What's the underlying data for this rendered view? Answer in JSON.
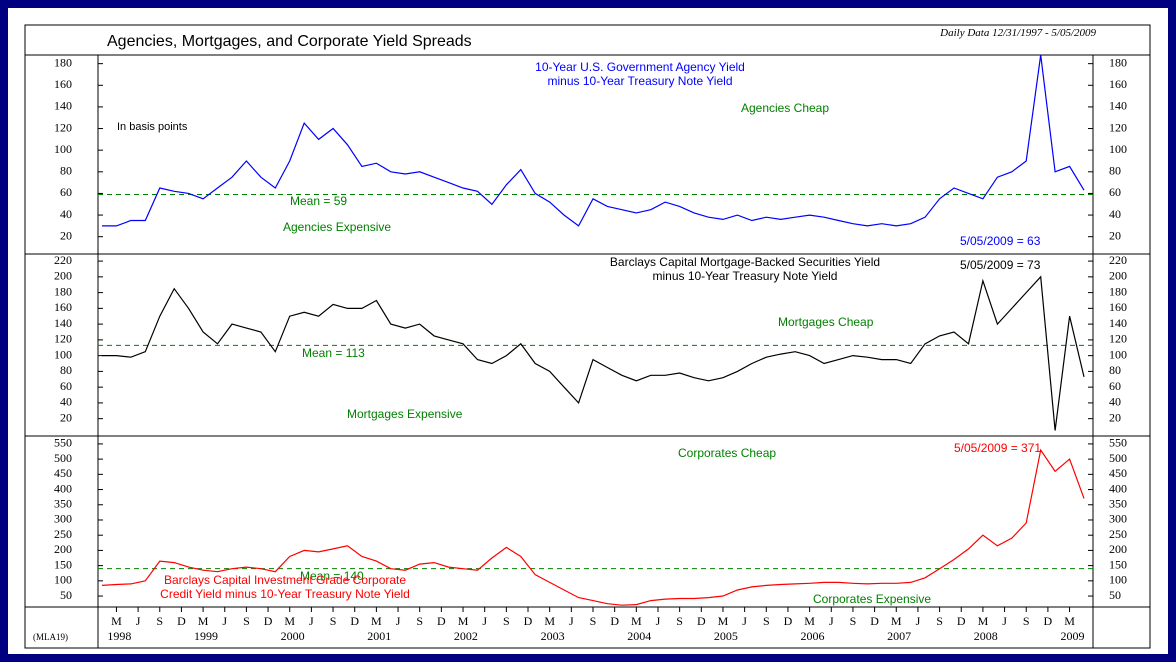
{
  "title": "Agencies, Mortgages, and Corporate Yield Spreads",
  "subtitle": "Daily Data 12/31/1997 - 5/05/2009",
  "source_code": "(MLA19)",
  "chart_data": [
    {
      "type": "line",
      "x": [
        "1998-01",
        "1998-03",
        "1998-05",
        "1998-07",
        "1998-09",
        "1998-11",
        "1999-01",
        "1999-03",
        "1999-05",
        "1999-07",
        "1999-09",
        "1999-11",
        "2000-01",
        "2000-03",
        "2000-05",
        "2000-07",
        "2000-09",
        "2000-11",
        "2001-01",
        "2001-03",
        "2001-05",
        "2001-07",
        "2001-09",
        "2001-11",
        "2002-01",
        "2002-03",
        "2002-05",
        "2002-07",
        "2002-09",
        "2002-11",
        "2003-01",
        "2003-03",
        "2003-05",
        "2003-07",
        "2003-09",
        "2003-11",
        "2004-01",
        "2004-03",
        "2004-05",
        "2004-07",
        "2004-09",
        "2004-11",
        "2005-01",
        "2005-03",
        "2005-05",
        "2005-07",
        "2005-09",
        "2005-11",
        "2006-01",
        "2006-03",
        "2006-05",
        "2006-07",
        "2006-09",
        "2006-11",
        "2007-01",
        "2007-03",
        "2007-05",
        "2007-07",
        "2007-09",
        "2007-11",
        "2008-01",
        "2008-03",
        "2008-05",
        "2008-07",
        "2008-09",
        "2008-11",
        "2009-01",
        "2009-03",
        "2009-05"
      ],
      "series": [
        {
          "name": "10-Year U.S. Government Agency Yield\nminus 10-Year Treasury Note Yield",
          "color": "#0000ff",
          "values": [
            30,
            30,
            35,
            35,
            65,
            62,
            60,
            55,
            65,
            75,
            90,
            75,
            65,
            90,
            125,
            110,
            120,
            105,
            85,
            88,
            80,
            78,
            80,
            75,
            70,
            65,
            62,
            50,
            68,
            82,
            60,
            52,
            40,
            30,
            55,
            48,
            45,
            42,
            45,
            52,
            48,
            42,
            38,
            36,
            40,
            35,
            38,
            36,
            38,
            40,
            38,
            35,
            32,
            30,
            32,
            30,
            32,
            38,
            55,
            65,
            60,
            55,
            75,
            80,
            90,
            188,
            80,
            85,
            63
          ]
        }
      ],
      "xlim": [
        "1998-01",
        "2009-05"
      ],
      "ylim": [
        4,
        188
      ],
      "yticks": [
        20,
        40,
        60,
        80,
        100,
        120,
        140,
        160,
        180
      ],
      "mean_line": {
        "value": 59,
        "label": "Mean = 59",
        "color": "#008000"
      },
      "annotations": [
        "Agencies Cheap",
        "Agencies Expensive",
        "In basis points"
      ],
      "end_label": "5/05/2009 = 63"
    },
    {
      "type": "line",
      "x": [
        "1998-01",
        "1998-03",
        "1998-05",
        "1998-07",
        "1998-09",
        "1998-11",
        "1999-01",
        "1999-03",
        "1999-05",
        "1999-07",
        "1999-09",
        "1999-11",
        "2000-01",
        "2000-03",
        "2000-05",
        "2000-07",
        "2000-09",
        "2000-11",
        "2001-01",
        "2001-03",
        "2001-05",
        "2001-07",
        "2001-09",
        "2001-11",
        "2002-01",
        "2002-03",
        "2002-05",
        "2002-07",
        "2002-09",
        "2002-11",
        "2003-01",
        "2003-03",
        "2003-05",
        "2003-07",
        "2003-09",
        "2003-11",
        "2004-01",
        "2004-03",
        "2004-05",
        "2004-07",
        "2004-09",
        "2004-11",
        "2005-01",
        "2005-03",
        "2005-05",
        "2005-07",
        "2005-09",
        "2005-11",
        "2006-01",
        "2006-03",
        "2006-05",
        "2006-07",
        "2006-09",
        "2006-11",
        "2007-01",
        "2007-03",
        "2007-05",
        "2007-07",
        "2007-09",
        "2007-11",
        "2008-01",
        "2008-03",
        "2008-05",
        "2008-07",
        "2008-09",
        "2008-11",
        "2009-01",
        "2009-03",
        "2009-05"
      ],
      "series": [
        {
          "name": "Barclays Capital Mortgage-Backed Securities Yield\nminus 10-Year Treasury Note Yield",
          "color": "#000000",
          "values": [
            100,
            100,
            98,
            105,
            150,
            185,
            160,
            130,
            115,
            140,
            135,
            130,
            105,
            150,
            155,
            150,
            165,
            160,
            160,
            170,
            140,
            135,
            140,
            125,
            120,
            115,
            95,
            90,
            100,
            115,
            90,
            80,
            60,
            40,
            95,
            85,
            75,
            68,
            75,
            75,
            78,
            72,
            68,
            72,
            80,
            90,
            98,
            102,
            105,
            100,
            90,
            95,
            100,
            98,
            95,
            95,
            90,
            115,
            125,
            130,
            115,
            195,
            140,
            160,
            180,
            200,
            5,
            150,
            73
          ]
        }
      ],
      "xlim": [
        "1998-01",
        "2009-05"
      ],
      "ylim": [
        -2,
        229
      ],
      "yticks": [
        20,
        40,
        60,
        80,
        100,
        120,
        140,
        160,
        180,
        200,
        220
      ],
      "mean_line": {
        "value": 113,
        "label": "Mean = 113",
        "color": "#008000"
      },
      "annotations": [
        "Mortgages Cheap",
        "Mortgages Expensive"
      ],
      "end_label": "5/05/2009 = 73"
    },
    {
      "type": "line",
      "x": [
        "1998-01",
        "1998-03",
        "1998-05",
        "1998-07",
        "1998-09",
        "1998-11",
        "1999-01",
        "1999-03",
        "1999-05",
        "1999-07",
        "1999-09",
        "1999-11",
        "2000-01",
        "2000-03",
        "2000-05",
        "2000-07",
        "2000-09",
        "2000-11",
        "2001-01",
        "2001-03",
        "2001-05",
        "2001-07",
        "2001-09",
        "2001-11",
        "2002-01",
        "2002-03",
        "2002-05",
        "2002-07",
        "2002-09",
        "2002-11",
        "2003-01",
        "2003-03",
        "2003-05",
        "2003-07",
        "2003-09",
        "2003-11",
        "2004-01",
        "2004-03",
        "2004-05",
        "2004-07",
        "2004-09",
        "2004-11",
        "2005-01",
        "2005-03",
        "2005-05",
        "2005-07",
        "2005-09",
        "2005-11",
        "2006-01",
        "2006-03",
        "2006-05",
        "2006-07",
        "2006-09",
        "2006-11",
        "2007-01",
        "2007-03",
        "2007-05",
        "2007-07",
        "2007-09",
        "2007-11",
        "2008-01",
        "2008-03",
        "2008-05",
        "2008-07",
        "2008-09",
        "2008-11",
        "2009-01",
        "2009-03",
        "2009-05"
      ],
      "series": [
        {
          "name": "Barclays Capital Investment Grade Corporate\nCredit Yield minus 10-Year Treasury Note Yield",
          "color": "#ff0000",
          "values": [
            85,
            88,
            90,
            100,
            165,
            160,
            145,
            135,
            130,
            140,
            145,
            140,
            130,
            180,
            200,
            195,
            205,
            215,
            180,
            165,
            140,
            135,
            155,
            160,
            145,
            140,
            135,
            175,
            210,
            180,
            120,
            95,
            70,
            45,
            35,
            25,
            20,
            22,
            35,
            40,
            42,
            42,
            45,
            50,
            70,
            80,
            85,
            88,
            90,
            92,
            95,
            95,
            92,
            90,
            92,
            92,
            95,
            110,
            140,
            170,
            205,
            250,
            215,
            240,
            290,
            530,
            460,
            500,
            371
          ]
        }
      ],
      "xlim": [
        "1998-01",
        "2009-05"
      ],
      "ylim": [
        14,
        576
      ],
      "yticks": [
        50,
        100,
        150,
        200,
        250,
        300,
        350,
        400,
        450,
        500,
        550
      ],
      "mean_line": {
        "value": 140,
        "label": "Mean = 140",
        "color": "#008000"
      },
      "annotations": [
        "Corporates Cheap",
        "Corporates Expensive"
      ],
      "end_label": "5/05/2009 = 371",
      "xticks": [
        {
          "value": "1998-03",
          "label": "M"
        },
        {
          "value": "1998-06",
          "label": "J"
        },
        {
          "value": "1998-09",
          "label": "S"
        },
        {
          "value": "1998-12",
          "label": "D"
        },
        {
          "value": "1999-03",
          "label": "M"
        },
        {
          "value": "1999-06",
          "label": "J"
        },
        {
          "value": "1999-09",
          "label": "S"
        },
        {
          "value": "1999-12",
          "label": "D"
        },
        {
          "value": "2000-03",
          "label": "M"
        },
        {
          "value": "2000-06",
          "label": "J"
        },
        {
          "value": "2000-09",
          "label": "S"
        },
        {
          "value": "2000-12",
          "label": "D"
        },
        {
          "value": "2001-03",
          "label": "M"
        },
        {
          "value": "2001-06",
          "label": "J"
        },
        {
          "value": "2001-09",
          "label": "S"
        },
        {
          "value": "2001-12",
          "label": "D"
        },
        {
          "value": "2002-03",
          "label": "M"
        },
        {
          "value": "2002-06",
          "label": "J"
        },
        {
          "value": "2002-09",
          "label": "S"
        },
        {
          "value": "2002-12",
          "label": "D"
        },
        {
          "value": "2003-03",
          "label": "M"
        },
        {
          "value": "2003-06",
          "label": "J"
        },
        {
          "value": "2003-09",
          "label": "S"
        },
        {
          "value": "2003-12",
          "label": "D"
        },
        {
          "value": "2004-03",
          "label": "M"
        },
        {
          "value": "2004-06",
          "label": "J"
        },
        {
          "value": "2004-09",
          "label": "S"
        },
        {
          "value": "2004-12",
          "label": "D"
        },
        {
          "value": "2005-03",
          "label": "M"
        },
        {
          "value": "2005-06",
          "label": "J"
        },
        {
          "value": "2005-09",
          "label": "S"
        },
        {
          "value": "2005-12",
          "label": "D"
        },
        {
          "value": "2006-03",
          "label": "M"
        },
        {
          "value": "2006-06",
          "label": "J"
        },
        {
          "value": "2006-09",
          "label": "S"
        },
        {
          "value": "2006-12",
          "label": "D"
        },
        {
          "value": "2007-03",
          "label": "M"
        },
        {
          "value": "2007-06",
          "label": "J"
        },
        {
          "value": "2007-09",
          "label": "S"
        },
        {
          "value": "2007-12",
          "label": "D"
        },
        {
          "value": "2008-03",
          "label": "M"
        },
        {
          "value": "2008-06",
          "label": "J"
        },
        {
          "value": "2008-09",
          "label": "S"
        },
        {
          "value": "2008-12",
          "label": "D"
        },
        {
          "value": "2009-03",
          "label": "M"
        }
      ],
      "year_ticks": [
        1998,
        1999,
        2000,
        2001,
        2002,
        2003,
        2004,
        2005,
        2006,
        2007,
        2008,
        2009
      ]
    }
  ]
}
